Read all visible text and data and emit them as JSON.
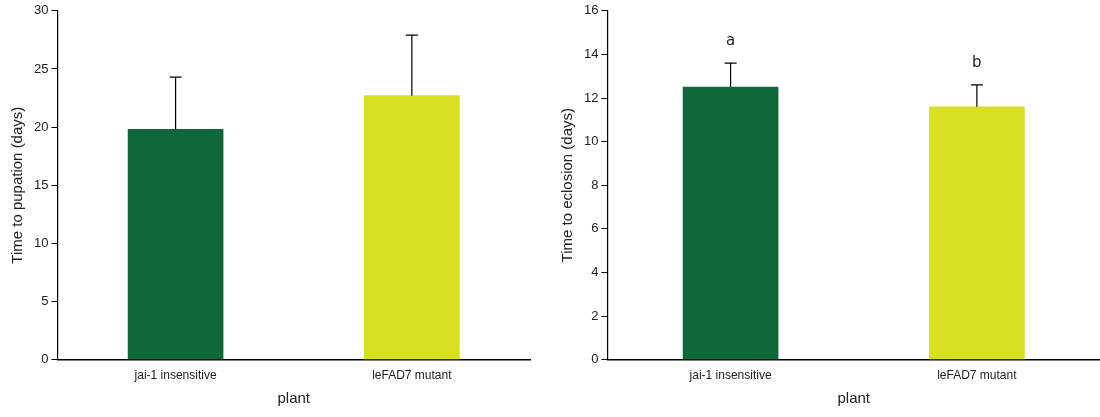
{
  "chart_data": [
    {
      "type": "bar",
      "xlabel": "plant",
      "ylabel": "Time to pupation (days)",
      "categories": [
        "jai-1 insensitive",
        "leFAD7 mutant"
      ],
      "colors": [
        "#106739",
        "#d7e021"
      ],
      "values": [
        19.8,
        22.7
      ],
      "errors": [
        4.5,
        5.2
      ],
      "ylim": [
        0,
        30
      ],
      "yticks": [
        0,
        5,
        10,
        15,
        20,
        25,
        30
      ],
      "grid": false,
      "legend": false
    },
    {
      "type": "bar",
      "xlabel": "plant",
      "ylabel": "Time to eclosion (days)",
      "categories": [
        "jai-1 insensitive",
        "leFAD7 mutant"
      ],
      "colors": [
        "#106739",
        "#d7e021"
      ],
      "values": [
        12.5,
        11.6
      ],
      "errors": [
        1.1,
        1.0
      ],
      "ylim": [
        0,
        16
      ],
      "yticks": [
        0,
        2,
        4,
        6,
        8,
        10,
        12,
        14,
        16
      ],
      "grid": false,
      "legend": false,
      "annotations": [
        "a",
        "b"
      ]
    }
  ]
}
